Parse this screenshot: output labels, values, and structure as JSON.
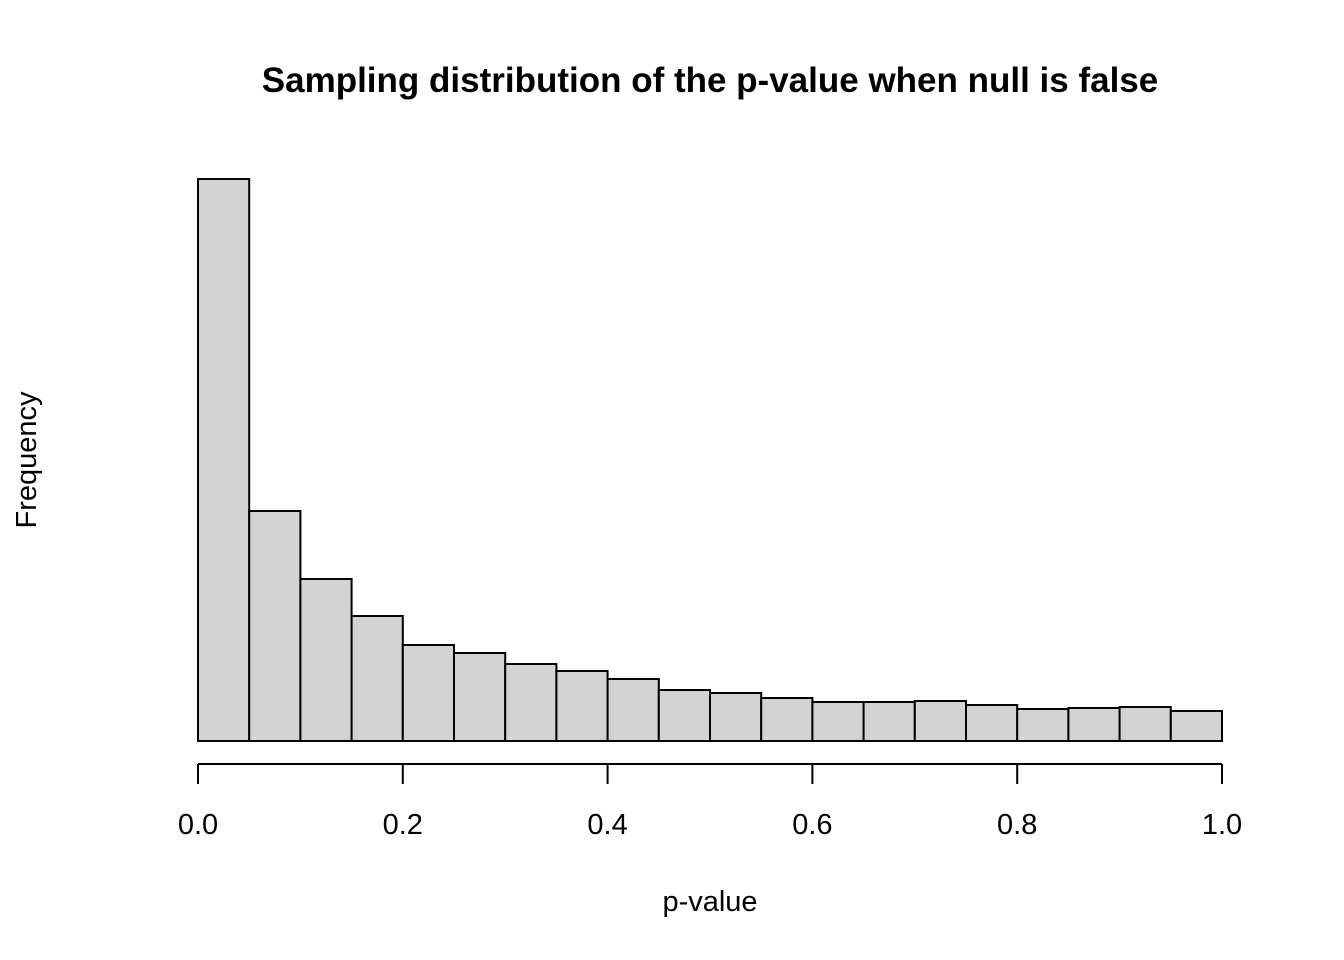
{
  "chart_data": {
    "type": "bar",
    "subtype": "histogram",
    "title": "Sampling distribution of the p-value when null is false",
    "xlabel": "p-value",
    "ylabel": "Frequency",
    "xlim": [
      0,
      1
    ],
    "x_ticks": [
      "0.0",
      "0.2",
      "0.4",
      "0.6",
      "0.8",
      "1.0"
    ],
    "x_tick_values": [
      0,
      0.2,
      0.4,
      0.6,
      0.8,
      1.0
    ],
    "y_axis_shown": false,
    "grid": false,
    "bin_width": 0.05,
    "bin_edges": [
      0,
      0.05,
      0.1,
      0.15,
      0.2,
      0.25,
      0.3,
      0.35,
      0.4,
      0.45,
      0.5,
      0.55,
      0.6,
      0.65,
      0.7,
      0.75,
      0.8,
      0.85,
      0.9,
      0.95,
      1.0
    ],
    "values_note": "relative frequencies (y axis unlabeled)",
    "values": [
      562,
      230,
      162,
      125,
      96,
      88,
      77,
      70,
      62,
      51,
      48,
      43,
      39,
      39,
      40,
      36,
      32,
      33,
      34,
      30
    ],
    "bar_fill": "#d3d3d3",
    "bar_stroke": "#000000"
  }
}
